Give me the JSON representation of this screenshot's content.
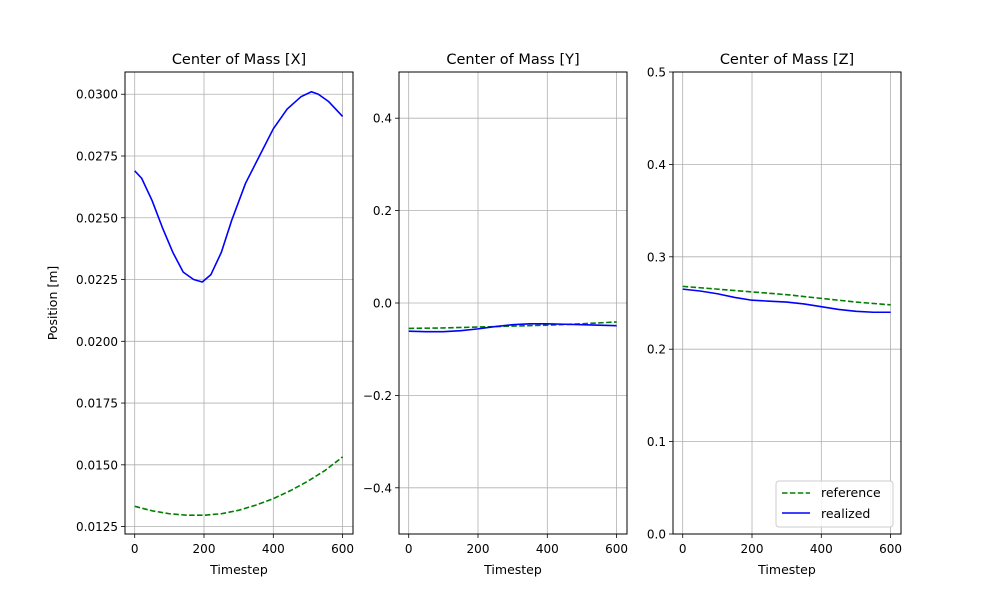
{
  "figure": {
    "legend": {
      "placement": "lower-right",
      "labels": [
        "reference",
        "realized"
      ]
    }
  },
  "chart_data": [
    {
      "type": "line",
      "title": "Center of Mass [X]",
      "xlabel": "Timestep",
      "ylabel": "Position [m]",
      "xlim": [
        -28,
        630
      ],
      "ylim": [
        0.0122,
        0.0309
      ],
      "xticks": [
        0,
        200,
        400,
        600
      ],
      "xtick_labels": [
        "0",
        "200",
        "400",
        "600"
      ],
      "yticks": [
        0.0125,
        0.015,
        0.0175,
        0.02,
        0.0225,
        0.025,
        0.0275,
        0.03
      ],
      "ytick_labels": [
        "0.0125",
        "0.0150",
        "0.0175",
        "0.0200",
        "0.0225",
        "0.0250",
        "0.0275",
        "0.0300"
      ],
      "grid": true,
      "series": [
        {
          "name": "reference",
          "color": "#008000",
          "style": "dashed",
          "x": [
            0,
            50,
            100,
            150,
            200,
            250,
            300,
            350,
            400,
            450,
            500,
            550,
            600
          ],
          "y": [
            0.01332,
            0.01314,
            0.01302,
            0.01296,
            0.01296,
            0.01302,
            0.01316,
            0.01337,
            0.01363,
            0.01396,
            0.01434,
            0.01478,
            0.01532
          ]
        },
        {
          "name": "realized",
          "color": "#0000ff",
          "style": "solid",
          "x": [
            0,
            20,
            50,
            80,
            110,
            140,
            170,
            195,
            220,
            250,
            280,
            320,
            360,
            400,
            440,
            480,
            510,
            530,
            560,
            580,
            600
          ],
          "y": [
            0.0269,
            0.0266,
            0.0257,
            0.0246,
            0.0236,
            0.0228,
            0.0225,
            0.0224,
            0.0227,
            0.0236,
            0.0249,
            0.0264,
            0.0275,
            0.0286,
            0.0294,
            0.0299,
            0.0301,
            0.03,
            0.0297,
            0.0294,
            0.0291
          ]
        }
      ]
    },
    {
      "type": "line",
      "title": "Center of Mass [Y]",
      "xlabel": "Timestep",
      "ylabel": "",
      "xlim": [
        -28,
        630
      ],
      "ylim": [
        -0.5,
        0.5
      ],
      "xticks": [
        0,
        200,
        400,
        600
      ],
      "xtick_labels": [
        "0",
        "200",
        "400",
        "600"
      ],
      "yticks": [
        -0.4,
        -0.2,
        0.0,
        0.2,
        0.4
      ],
      "ytick_labels": [
        "−0.4",
        "−0.2",
        "0.0",
        "0.2",
        "0.4"
      ],
      "grid": true,
      "series": [
        {
          "name": "reference",
          "color": "#008000",
          "style": "dashed",
          "x": [
            0,
            100,
            200,
            300,
            400,
            500,
            600
          ],
          "y": [
            -0.055,
            -0.054,
            -0.052,
            -0.05,
            -0.048,
            -0.045,
            -0.041
          ]
        },
        {
          "name": "realized",
          "color": "#0000ff",
          "style": "solid",
          "x": [
            0,
            50,
            100,
            150,
            200,
            250,
            300,
            350,
            400,
            450,
            500,
            550,
            600
          ],
          "y": [
            -0.061,
            -0.062,
            -0.062,
            -0.06,
            -0.056,
            -0.051,
            -0.047,
            -0.045,
            -0.045,
            -0.046,
            -0.047,
            -0.048,
            -0.049
          ]
        }
      ]
    },
    {
      "type": "line",
      "title": "Center of Mass [Z]",
      "xlabel": "Timestep",
      "ylabel": "",
      "xlim": [
        -28,
        630
      ],
      "ylim": [
        0,
        0.5
      ],
      "xticks": [
        0,
        200,
        400,
        600
      ],
      "xtick_labels": [
        "0",
        "200",
        "400",
        "600"
      ],
      "yticks": [
        0.0,
        0.1,
        0.2,
        0.3,
        0.4,
        0.5
      ],
      "ytick_labels": [
        "0.0",
        "0.1",
        "0.2",
        "0.3",
        "0.4",
        "0.5"
      ],
      "grid": true,
      "series": [
        {
          "name": "reference",
          "color": "#008000",
          "style": "dashed",
          "x": [
            0,
            100,
            200,
            300,
            400,
            500,
            600
          ],
          "y": [
            0.268,
            0.265,
            0.262,
            0.259,
            0.255,
            0.251,
            0.248
          ]
        },
        {
          "name": "realized",
          "color": "#0000ff",
          "style": "solid",
          "x": [
            0,
            50,
            100,
            150,
            200,
            250,
            300,
            350,
            400,
            450,
            500,
            550,
            600
          ],
          "y": [
            0.265,
            0.263,
            0.26,
            0.256,
            0.253,
            0.252,
            0.251,
            0.249,
            0.246,
            0.243,
            0.241,
            0.24,
            0.24
          ]
        }
      ]
    }
  ]
}
